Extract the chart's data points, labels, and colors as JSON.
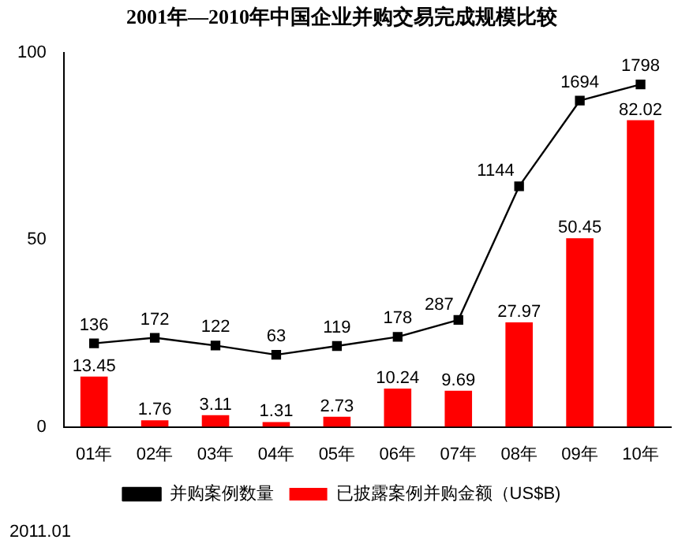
{
  "chart_data": {
    "type": "bar",
    "title": "2001年—2010年中国企业并购交易完成规模比较",
    "categories": [
      "01年",
      "02年",
      "03年",
      "04年",
      "05年",
      "06年",
      "07年",
      "08年",
      "09年",
      "10年"
    ],
    "series": [
      {
        "name": "已披露案例并购金额（US$B)",
        "color": "#ff0000",
        "values": [
          13.45,
          1.76,
          3.11,
          1.31,
          2.73,
          10.24,
          9.69,
          27.97,
          50.45,
          82.02
        ]
      },
      {
        "name": "并购案例数量",
        "type": "line",
        "axis": "y2",
        "color": "#000000",
        "marker": "square",
        "values": [
          136,
          172,
          122,
          63,
          119,
          178,
          287,
          1144,
          1694,
          1798
        ]
      }
    ],
    "ylim": [
      0,
      100
    ],
    "yticks": [
      0,
      50,
      100
    ],
    "y2lim": [
      -400,
      2000
    ],
    "grid": false,
    "legend": "bottom",
    "data_labels": true,
    "annotations": [
      "2011.01"
    ]
  }
}
